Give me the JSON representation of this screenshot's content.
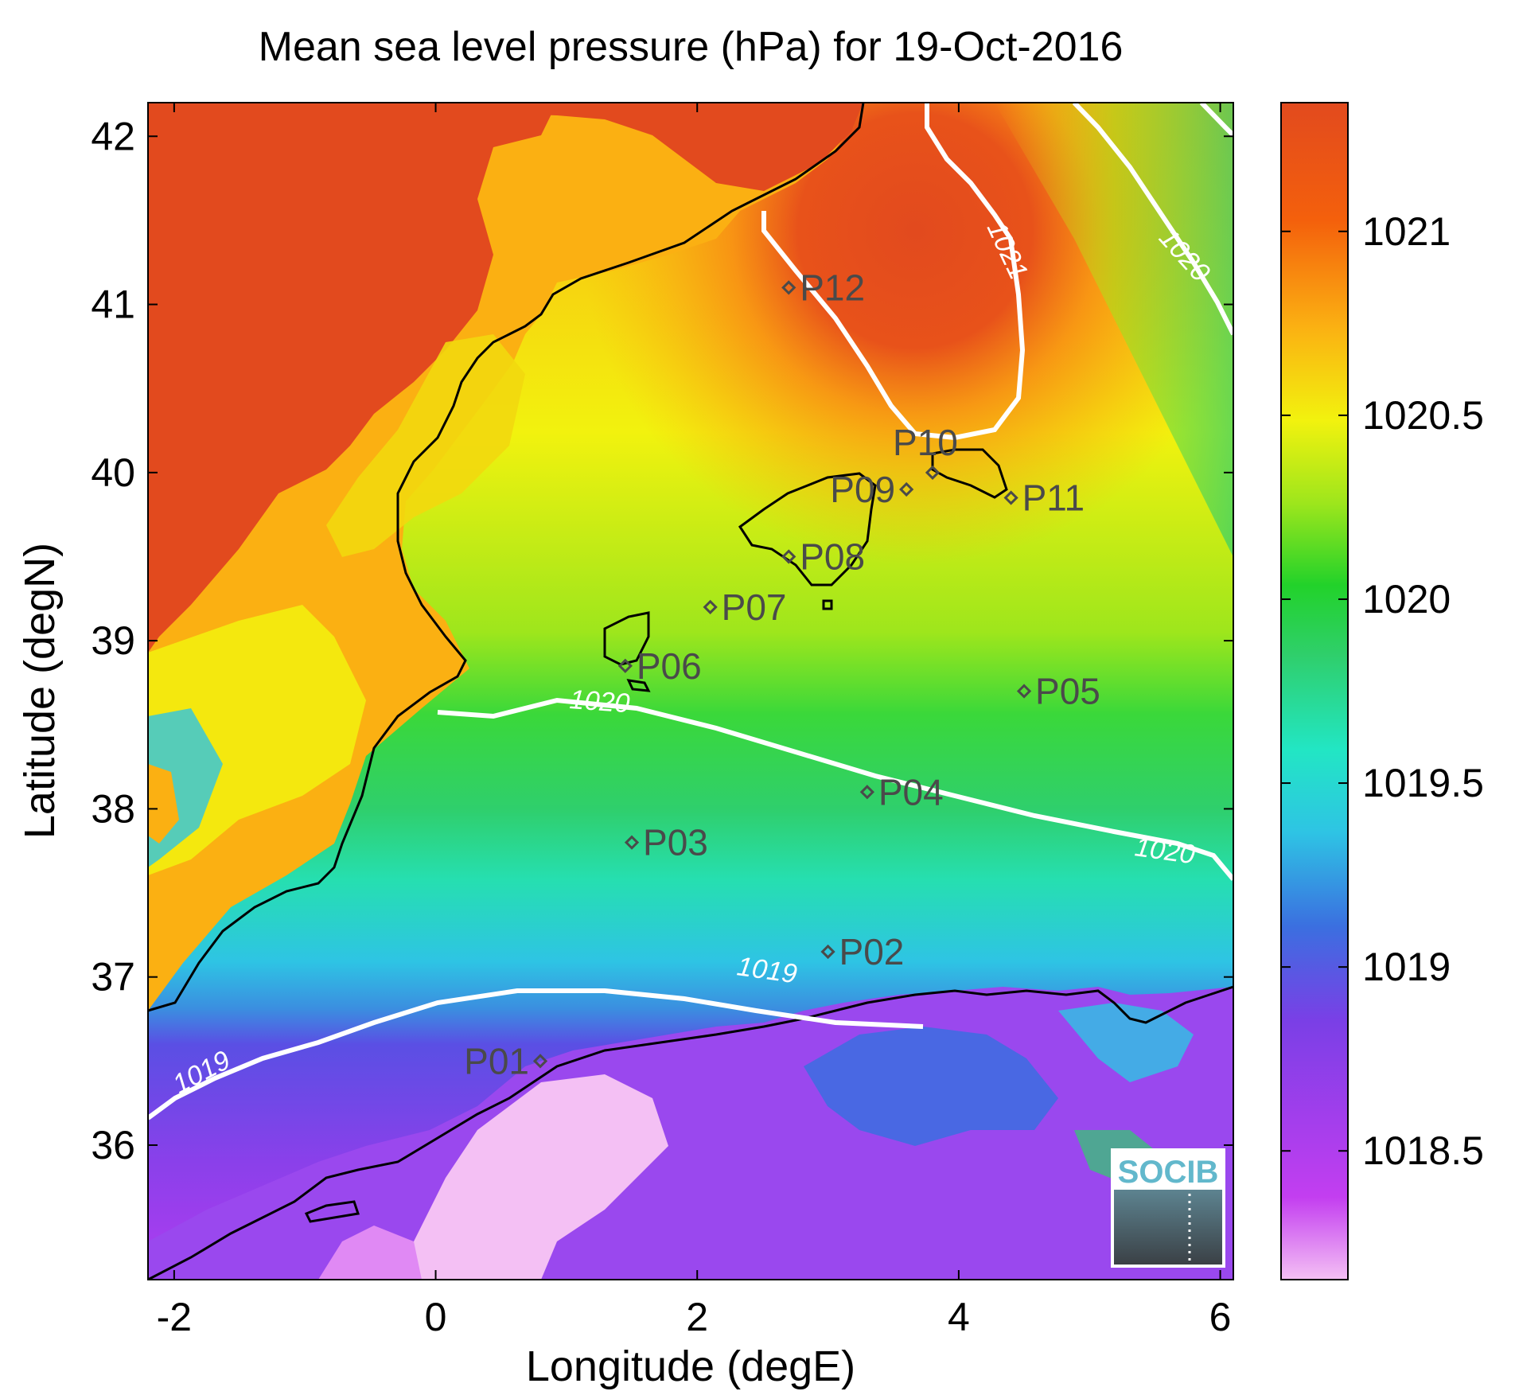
{
  "title": "Mean sea level pressure (hPa) for 19-Oct-2016",
  "xlabel": "Longitude (degE)",
  "ylabel": "Latitude (degN)",
  "xlim": [
    -2.2,
    6.1
  ],
  "ylim": [
    35.2,
    42.2
  ],
  "x_ticks": [
    -2,
    0,
    2,
    4,
    6
  ],
  "y_ticks": [
    36,
    37,
    38,
    39,
    40,
    41,
    42
  ],
  "colorbar": {
    "ticks": [
      "1018.5",
      "1019",
      "1019.5",
      "1020",
      "1020.5",
      "1021"
    ],
    "tick_values": [
      1018.5,
      1019,
      1019.5,
      1020,
      1020.5,
      1021
    ],
    "range": [
      1018.15,
      1021.35
    ],
    "colors": [
      "#f4c0f4",
      "#c33ef0",
      "#7a3fe6",
      "#3b6fe0",
      "#2ec4e4",
      "#22e6c4",
      "#2fcf6c",
      "#22d22a",
      "#9ee61c",
      "#f2f20e",
      "#fbb012",
      "#f4600c",
      "#e24a1e"
    ]
  },
  "stations": [
    {
      "name": "P01",
      "lon": 0.8,
      "lat": 36.5
    },
    {
      "name": "P02",
      "lon": 3.0,
      "lat": 37.15
    },
    {
      "name": "P03",
      "lon": 1.5,
      "lat": 37.8
    },
    {
      "name": "P04",
      "lon": 3.3,
      "lat": 38.1
    },
    {
      "name": "P05",
      "lon": 4.5,
      "lat": 38.7
    },
    {
      "name": "P06",
      "lon": 1.45,
      "lat": 38.85
    },
    {
      "name": "P07",
      "lon": 2.1,
      "lat": 39.2
    },
    {
      "name": "P08",
      "lon": 2.7,
      "lat": 39.5
    },
    {
      "name": "P09",
      "lon": 3.6,
      "lat": 39.9
    },
    {
      "name": "P10",
      "lon": 3.8,
      "lat": 40.0
    },
    {
      "name": "P11",
      "lon": 4.4,
      "lat": 39.85
    },
    {
      "name": "P12",
      "lon": 2.7,
      "lat": 41.1
    }
  ],
  "contours": [
    {
      "label": "1019",
      "value": 1019
    },
    {
      "label": "1020",
      "value": 1020
    },
    {
      "label": "1021",
      "value": 1021
    }
  ],
  "logo": {
    "text": "SOCIB"
  }
}
